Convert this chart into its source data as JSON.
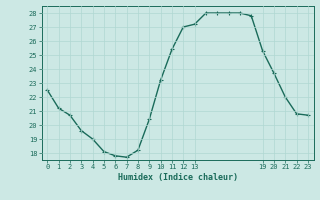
{
  "x": [
    0,
    1,
    2,
    3,
    4,
    5,
    6,
    7,
    8,
    9,
    10,
    11,
    12,
    13,
    14,
    15,
    16,
    17,
    18,
    19,
    20,
    21,
    22,
    23
  ],
  "y": [
    22.5,
    21.2,
    20.7,
    19.6,
    19.0,
    18.1,
    17.8,
    17.7,
    18.2,
    20.4,
    23.2,
    25.4,
    27.0,
    27.2,
    28.0,
    28.0,
    28.0,
    28.0,
    27.8,
    25.3,
    23.7,
    22.0,
    20.8,
    20.7
  ],
  "x_ticks": [
    0,
    1,
    2,
    3,
    4,
    5,
    6,
    7,
    8,
    9,
    10,
    11,
    12,
    13,
    19,
    20,
    21,
    22,
    23
  ],
  "x_tick_labels": [
    "0",
    "1",
    "2",
    "3",
    "4",
    "5",
    "6",
    "7",
    "8",
    "9",
    "10",
    "11",
    "12",
    "13",
    "19",
    "20",
    "21",
    "22",
    "23"
  ],
  "y_ticks": [
    18,
    19,
    20,
    21,
    22,
    23,
    24,
    25,
    26,
    27,
    28
  ],
  "ylim": [
    17.5,
    28.5
  ],
  "xlim": [
    -0.5,
    23.5
  ],
  "xlabel": "Humidex (Indice chaleur)",
  "line_color": "#1a6b5a",
  "bg_color": "#cce8e4",
  "grid_color": "#b0d8d2",
  "tick_color": "#1a6b5a",
  "marker": "+",
  "marker_size": 3.5,
  "linewidth": 1.0
}
